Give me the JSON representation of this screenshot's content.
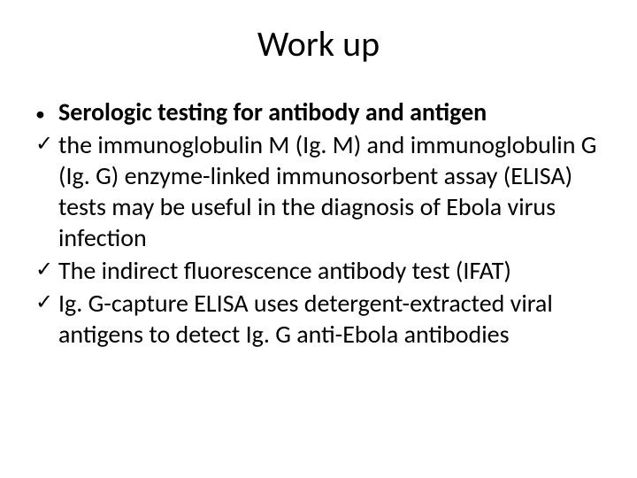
{
  "title": "Work up",
  "content": {
    "heading": "Serologic testing for antibody and antigen",
    "items": [
      "the immunoglobulin M (Ig. M) and immunoglobulin G (Ig. G) enzyme-linked immunosorbent assay (ELISA) tests may be useful in the diagnosis of Ebola virus infection",
      "The indirect fluorescence antibody test (IFAT)",
      "Ig. G-capture ELISA uses detergent-extracted viral antigens to detect Ig. G anti-Ebola antibodies"
    ]
  },
  "markers": {
    "bullet": "•",
    "check": "✓"
  },
  "style": {
    "background_color": "#ffffff",
    "text_color": "#000000",
    "title_fontsize": 40,
    "body_fontsize": 28,
    "font_family": "Calibri"
  }
}
